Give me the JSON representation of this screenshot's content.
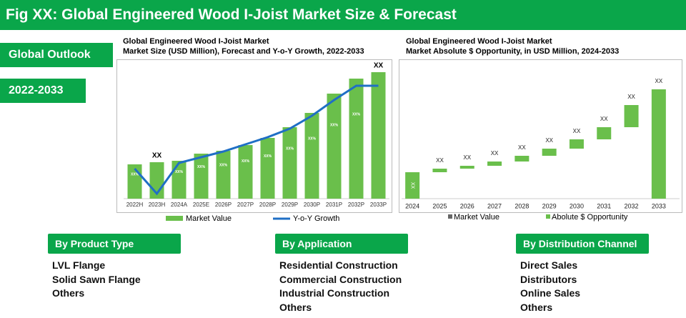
{
  "header": {
    "title": "Fig XX: Global Engineered Wood I-Joist Market Size & Forecast"
  },
  "tags": [
    "Global Outlook",
    "2022-2033"
  ],
  "chart_data": [
    {
      "type": "bar_line",
      "title": "Global Engineered Wood I-Joist Market",
      "subtitle": "Market Size (USD Million), Forecast and Y-o-Y Growth, 2022-2033",
      "categories": [
        "2022H",
        "2023H",
        "2024A",
        "2025E",
        "2026P",
        "2027P",
        "2028P",
        "2029P",
        "2030P",
        "2031P",
        "2032P",
        "2033P"
      ],
      "series": [
        {
          "name": "Market Value",
          "type": "bar",
          "color": "#6abf4b",
          "values": [
            48,
            51,
            53,
            63,
            67,
            75,
            85,
            100,
            120,
            147,
            168,
            177
          ],
          "value_labels": [
            "XX%",
            "XX",
            "XX%",
            "XX%",
            "XX%",
            "XX%",
            "XX%",
            "XX%",
            "XX%",
            "XX%",
            "XX%",
            "XX"
          ]
        },
        {
          "name": "Y-o-Y Growth",
          "type": "line",
          "color": "#1f6fc5",
          "values": [
            42,
            7,
            50,
            58,
            66,
            76,
            86,
            98,
            116,
            138,
            158,
            158
          ]
        }
      ]
    },
    {
      "type": "waterfall",
      "title": "Global Engineered Wood I-Joist Market",
      "subtitle": "Market Absolute $ Opportunity, in USD Million, 2024-2033",
      "categories": [
        "2024",
        "2025",
        "2026",
        "2027",
        "2028",
        "2029",
        "2030",
        "2031",
        "2032",
        "2033"
      ],
      "values": [
        37,
        5,
        4,
        6,
        8,
        10,
        13,
        17,
        31,
        153
      ],
      "value_labels": [
        "XX",
        "XX",
        "XX",
        "XX",
        "XX",
        "XX",
        "XX",
        "XX",
        "XX",
        "XX"
      ],
      "color": "#6abf4b",
      "legend": [
        {
          "name": "Market Value",
          "color": "#666666"
        },
        {
          "name": "Abolute $ Opportunity",
          "color": "#6abf4b"
        }
      ]
    }
  ],
  "segments": [
    {
      "title": "By Product Type",
      "items": [
        "LVL Flange",
        "Solid Sawn Flange",
        "Others"
      ]
    },
    {
      "title": "By Application",
      "items": [
        "Residential Construction",
        "Commercial Construction",
        "Industrial Construction",
        "Others"
      ]
    },
    {
      "title": "By Distribution Channel",
      "items": [
        "Direct Sales",
        "Distributors",
        "Online Sales",
        "Others"
      ]
    }
  ]
}
